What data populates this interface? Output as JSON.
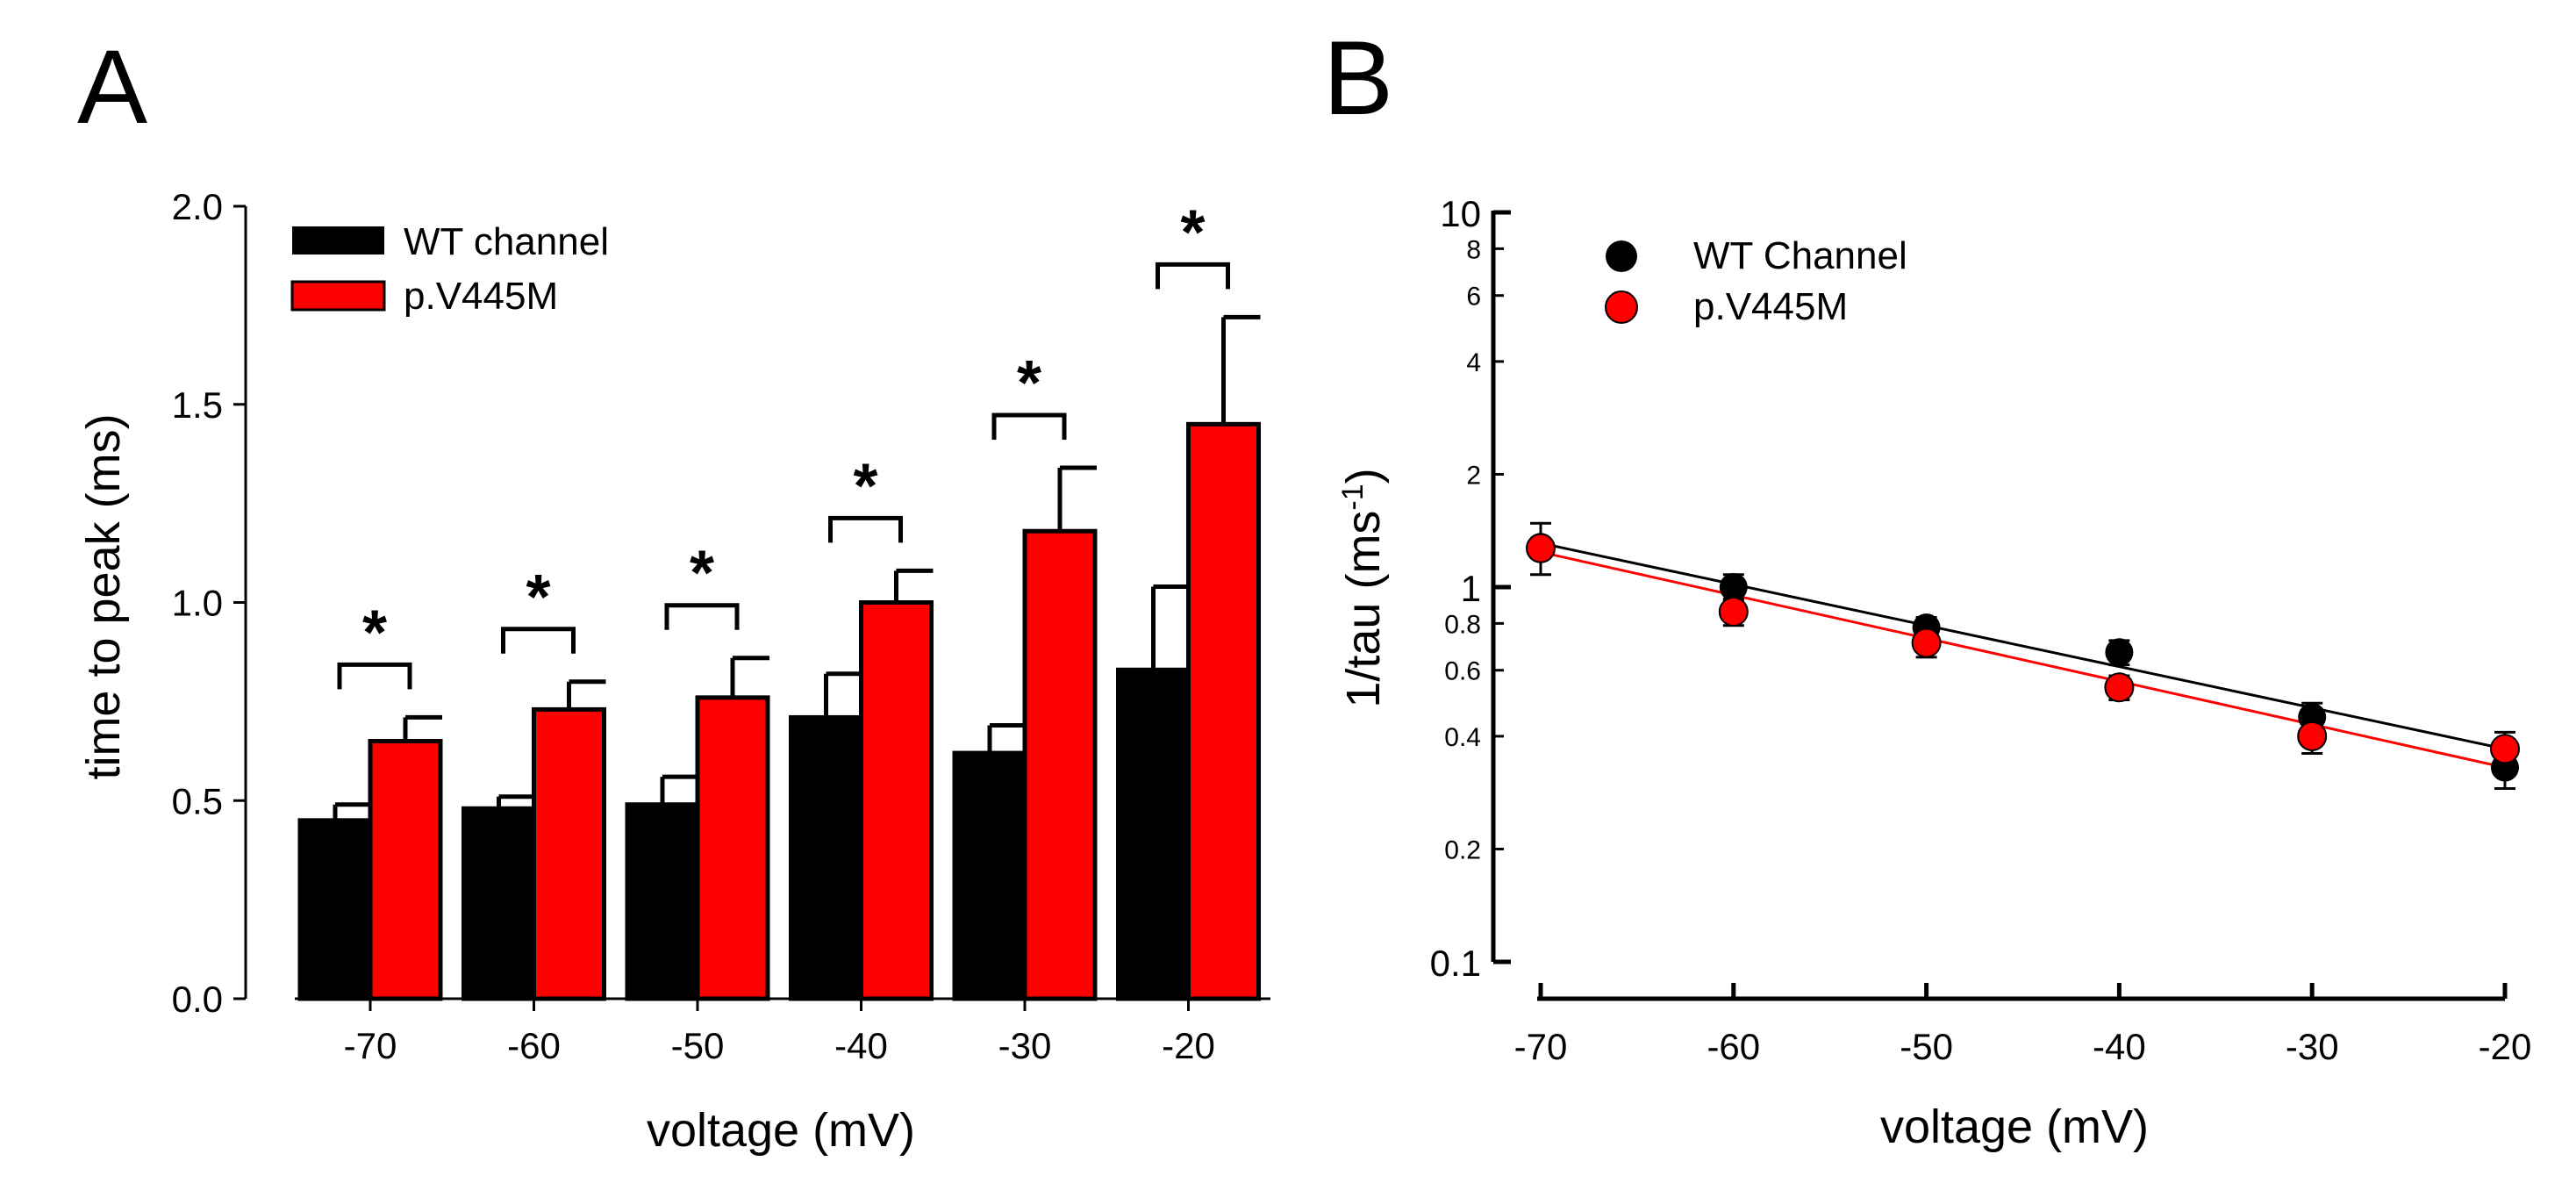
{
  "panel_labels": {
    "a": "A",
    "b": "B"
  },
  "colors": {
    "wt": "#000000",
    "mut": "#ff0000",
    "axis": "#000000"
  },
  "chart_data": [
    {
      "type": "bar",
      "title": "",
      "xlabel": "voltage (mV)",
      "ylabel": "time to peak (ms)",
      "ylim": [
        0,
        2.0
      ],
      "yticks": [
        "0.0",
        "0.5",
        "1.0",
        "1.5",
        "2.0"
      ],
      "categories": [
        "-70",
        "-60",
        "-50",
        "-40",
        "-30",
        "-20"
      ],
      "series": [
        {
          "name": "WT channel",
          "values": [
            0.45,
            0.48,
            0.49,
            0.71,
            0.62,
            0.83
          ],
          "errors": [
            0.04,
            0.03,
            0.07,
            0.11,
            0.07,
            0.21
          ]
        },
        {
          "name": "p.V445M",
          "values": [
            0.65,
            0.73,
            0.76,
            1.0,
            1.18,
            1.45
          ],
          "errors": [
            0.06,
            0.07,
            0.1,
            0.08,
            0.16,
            0.27
          ]
        }
      ],
      "significance": [
        "*",
        "*",
        "*",
        "*",
        "*",
        "*"
      ]
    },
    {
      "type": "scatter",
      "title": "",
      "xlabel": "voltage (mV)",
      "ylabel_main": "1/tau (ms",
      "ylabel_sup": "-1",
      "ylabel_close": ")",
      "yscale": "log",
      "ylim": [
        0.1,
        10
      ],
      "xlim": [
        -70,
        -20
      ],
      "xticks": [
        "-70",
        "-60",
        "-50",
        "-40",
        "-30",
        "-20"
      ],
      "yticks_major": [
        "0.1",
        "1",
        "10"
      ],
      "yticks_minor": [
        "0.2",
        "0.4",
        "0.6",
        "0.8",
        "2",
        "4",
        "6",
        "8"
      ],
      "x": [
        -70,
        -60,
        -50,
        -40,
        -30,
        -20
      ],
      "series": [
        {
          "name": "WT Channel",
          "values": [
            1.28,
            1.0,
            0.78,
            0.67,
            0.45,
            0.33
          ],
          "errors": [
            0.2,
            0.08,
            0.05,
            0.05,
            0.04,
            0.04
          ],
          "fit": [
            1.31,
            0.37
          ]
        },
        {
          "name": "p.V445M",
          "values": [
            1.27,
            0.86,
            0.71,
            0.54,
            0.4,
            0.37
          ],
          "errors": [
            0.06,
            0.07,
            0.06,
            0.04,
            0.04,
            0.04
          ],
          "fit": [
            1.24,
            0.33
          ]
        }
      ]
    }
  ]
}
